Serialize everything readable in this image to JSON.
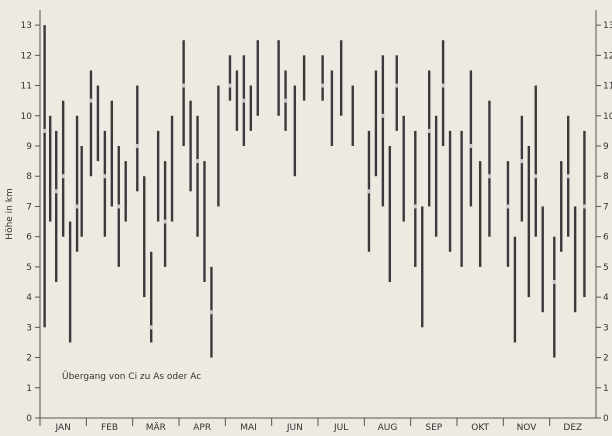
{
  "chart_data": {
    "type": "vertical-range",
    "ylabel": "Höhe in km",
    "ylim": [
      0,
      13.5
    ],
    "y_ticks": [
      "0",
      "1",
      "2",
      "3",
      "4",
      "5",
      "6",
      "7",
      "8",
      "9",
      "10",
      "11",
      "12",
      "13"
    ],
    "months": [
      "JAN",
      "FEB",
      "MÄR",
      "APR",
      "MAI",
      "JUN",
      "JUL",
      "AUG",
      "SEP",
      "OKT",
      "NOV",
      "DEZ"
    ],
    "annotation": "Übergang von Ci zu As oder Ac",
    "grid": false,
    "colors": {
      "bar": "#3a3a3a",
      "transition": "#c9c9c9",
      "text": "#333333"
    },
    "series": [
      {
        "x": 0.1,
        "low": 3.0,
        "high": 13.0,
        "transition": 9.5
      },
      {
        "x": 0.22,
        "low": 6.5,
        "high": 10.0,
        "transition": null
      },
      {
        "x": 0.35,
        "low": 4.5,
        "high": 9.5,
        "transition": 7.5
      },
      {
        "x": 0.5,
        "low": 6.0,
        "high": 10.5,
        "transition": 8.0
      },
      {
        "x": 0.65,
        "low": 2.5,
        "high": 6.5,
        "transition": null
      },
      {
        "x": 0.8,
        "low": 5.5,
        "high": 10.0,
        "transition": 7.0
      },
      {
        "x": 0.9,
        "low": 6.0,
        "high": 9.0,
        "transition": null
      },
      {
        "x": 1.1,
        "low": 8.0,
        "high": 11.5,
        "transition": 10.5
      },
      {
        "x": 1.25,
        "low": 8.5,
        "high": 11.0,
        "transition": null
      },
      {
        "x": 1.4,
        "low": 6.0,
        "high": 9.5,
        "transition": 8.0
      },
      {
        "x": 1.55,
        "low": 7.0,
        "high": 10.5,
        "transition": null
      },
      {
        "x": 1.7,
        "low": 5.0,
        "high": 9.0,
        "transition": 7.0
      },
      {
        "x": 1.85,
        "low": 6.5,
        "high": 8.5,
        "transition": null
      },
      {
        "x": 2.1,
        "low": 7.5,
        "high": 11.0,
        "transition": 9.0
      },
      {
        "x": 2.25,
        "low": 4.0,
        "high": 8.0,
        "transition": null
      },
      {
        "x": 2.4,
        "low": 2.5,
        "high": 5.5,
        "transition": 3.0
      },
      {
        "x": 2.55,
        "low": 6.5,
        "high": 9.5,
        "transition": null
      },
      {
        "x": 2.7,
        "low": 5.0,
        "high": 8.5,
        "transition": 6.5
      },
      {
        "x": 2.85,
        "low": 6.5,
        "high": 10.0,
        "transition": null
      },
      {
        "x": 3.1,
        "low": 9.0,
        "high": 12.5,
        "transition": 11.0
      },
      {
        "x": 3.25,
        "low": 7.5,
        "high": 10.5,
        "transition": null
      },
      {
        "x": 3.4,
        "low": 6.0,
        "high": 10.0,
        "transition": 8.5
      },
      {
        "x": 3.55,
        "low": 4.5,
        "high": 8.5,
        "transition": null
      },
      {
        "x": 3.7,
        "low": 2.0,
        "high": 5.0,
        "transition": 3.5
      },
      {
        "x": 3.85,
        "low": 7.0,
        "high": 11.0,
        "transition": null
      },
      {
        "x": 4.1,
        "low": 10.5,
        "high": 12.0,
        "transition": 11.0
      },
      {
        "x": 4.25,
        "low": 9.5,
        "high": 11.5,
        "transition": null
      },
      {
        "x": 4.4,
        "low": 9.0,
        "high": 12.0,
        "transition": 10.5
      },
      {
        "x": 4.55,
        "low": 9.5,
        "high": 11.0,
        "transition": null
      },
      {
        "x": 4.7,
        "low": 10.0,
        "high": 12.5,
        "transition": null
      },
      {
        "x": 5.15,
        "low": 10.0,
        "high": 12.5,
        "transition": null
      },
      {
        "x": 5.3,
        "low": 9.5,
        "high": 11.5,
        "transition": 10.5
      },
      {
        "x": 5.5,
        "low": 8.0,
        "high": 11.0,
        "transition": null
      },
      {
        "x": 5.7,
        "low": 10.5,
        "high": 12.0,
        "transition": null
      },
      {
        "x": 6.1,
        "low": 10.5,
        "high": 12.0,
        "transition": 11.0
      },
      {
        "x": 6.3,
        "low": 9.0,
        "high": 11.5,
        "transition": null
      },
      {
        "x": 6.5,
        "low": 10.0,
        "high": 12.5,
        "transition": null
      },
      {
        "x": 6.75,
        "low": 9.0,
        "high": 11.0,
        "transition": null
      },
      {
        "x": 7.1,
        "low": 5.5,
        "high": 9.5,
        "transition": 7.5
      },
      {
        "x": 7.25,
        "low": 8.0,
        "high": 11.5,
        "transition": null
      },
      {
        "x": 7.4,
        "low": 7.0,
        "high": 12.0,
        "transition": 10.0
      },
      {
        "x": 7.55,
        "low": 4.5,
        "high": 9.0,
        "transition": null
      },
      {
        "x": 7.7,
        "low": 9.5,
        "high": 12.0,
        "transition": 11.0
      },
      {
        "x": 7.85,
        "low": 6.5,
        "high": 10.0,
        "transition": null
      },
      {
        "x": 8.1,
        "low": 5.0,
        "high": 9.5,
        "transition": 7.0
      },
      {
        "x": 8.25,
        "low": 3.0,
        "high": 7.0,
        "transition": null
      },
      {
        "x": 8.4,
        "low": 7.0,
        "high": 11.5,
        "transition": 9.5
      },
      {
        "x": 8.55,
        "low": 6.0,
        "high": 10.0,
        "transition": null
      },
      {
        "x": 8.7,
        "low": 9.0,
        "high": 12.5,
        "transition": 11.0
      },
      {
        "x": 8.85,
        "low": 5.5,
        "high": 9.5,
        "transition": null
      },
      {
        "x": 9.1,
        "low": 5.0,
        "high": 9.5,
        "transition": null
      },
      {
        "x": 9.3,
        "low": 7.0,
        "high": 11.5,
        "transition": 9.0
      },
      {
        "x": 9.5,
        "low": 5.0,
        "high": 8.5,
        "transition": null
      },
      {
        "x": 9.7,
        "low": 6.0,
        "high": 10.5,
        "transition": 8.0
      },
      {
        "x": 10.1,
        "low": 5.0,
        "high": 8.5,
        "transition": 7.0
      },
      {
        "x": 10.25,
        "low": 2.5,
        "high": 6.0,
        "transition": null
      },
      {
        "x": 10.4,
        "low": 6.5,
        "high": 10.0,
        "transition": 8.5
      },
      {
        "x": 10.55,
        "low": 4.0,
        "high": 9.0,
        "transition": null
      },
      {
        "x": 10.7,
        "low": 6.0,
        "high": 11.0,
        "transition": 8.0
      },
      {
        "x": 10.85,
        "low": 3.5,
        "high": 7.0,
        "transition": null
      },
      {
        "x": 11.1,
        "low": 2.0,
        "high": 6.0,
        "transition": 4.5
      },
      {
        "x": 11.25,
        "low": 5.5,
        "high": 8.5,
        "transition": null
      },
      {
        "x": 11.4,
        "low": 6.0,
        "high": 10.0,
        "transition": 8.0
      },
      {
        "x": 11.55,
        "low": 3.5,
        "high": 7.0,
        "transition": null
      },
      {
        "x": 11.75,
        "low": 4.0,
        "high": 9.5,
        "transition": 7.0
      }
    ]
  }
}
